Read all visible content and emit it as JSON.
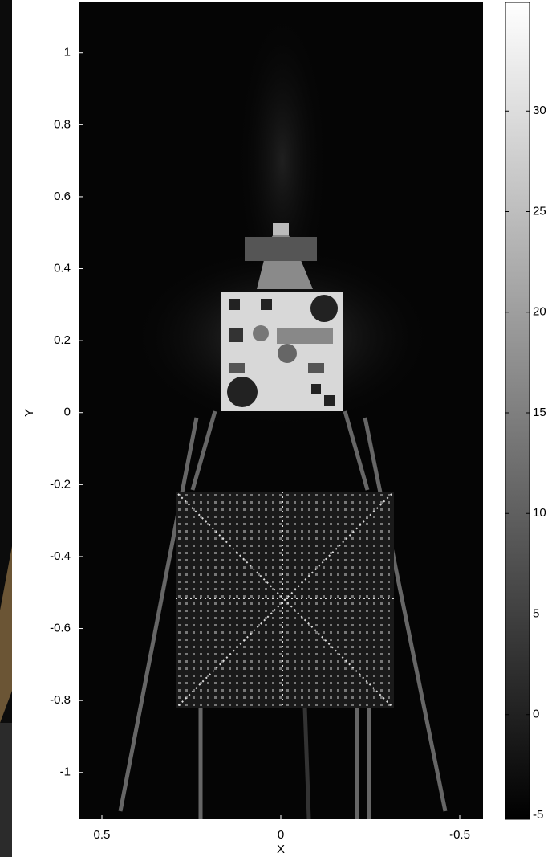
{
  "chart_data": {
    "type": "heatmap",
    "xlabel": "X",
    "ylabel": "Y",
    "xlim": [
      0.565,
      -0.565
    ],
    "xticks": [
      0.5,
      0,
      -0.5
    ],
    "ylim": [
      -1.13,
      1.14
    ],
    "yticks": [
      1,
      0.8,
      0.6,
      0.4,
      0.2,
      0,
      -0.2,
      -0.4,
      -0.6,
      -0.8,
      -1
    ],
    "colorbar": {
      "lim": [
        -5.2,
        35.4
      ],
      "ticks": [
        30,
        25,
        20,
        15,
        10,
        5,
        0,
        -5
      ],
      "colormap": "gray"
    }
  }
}
